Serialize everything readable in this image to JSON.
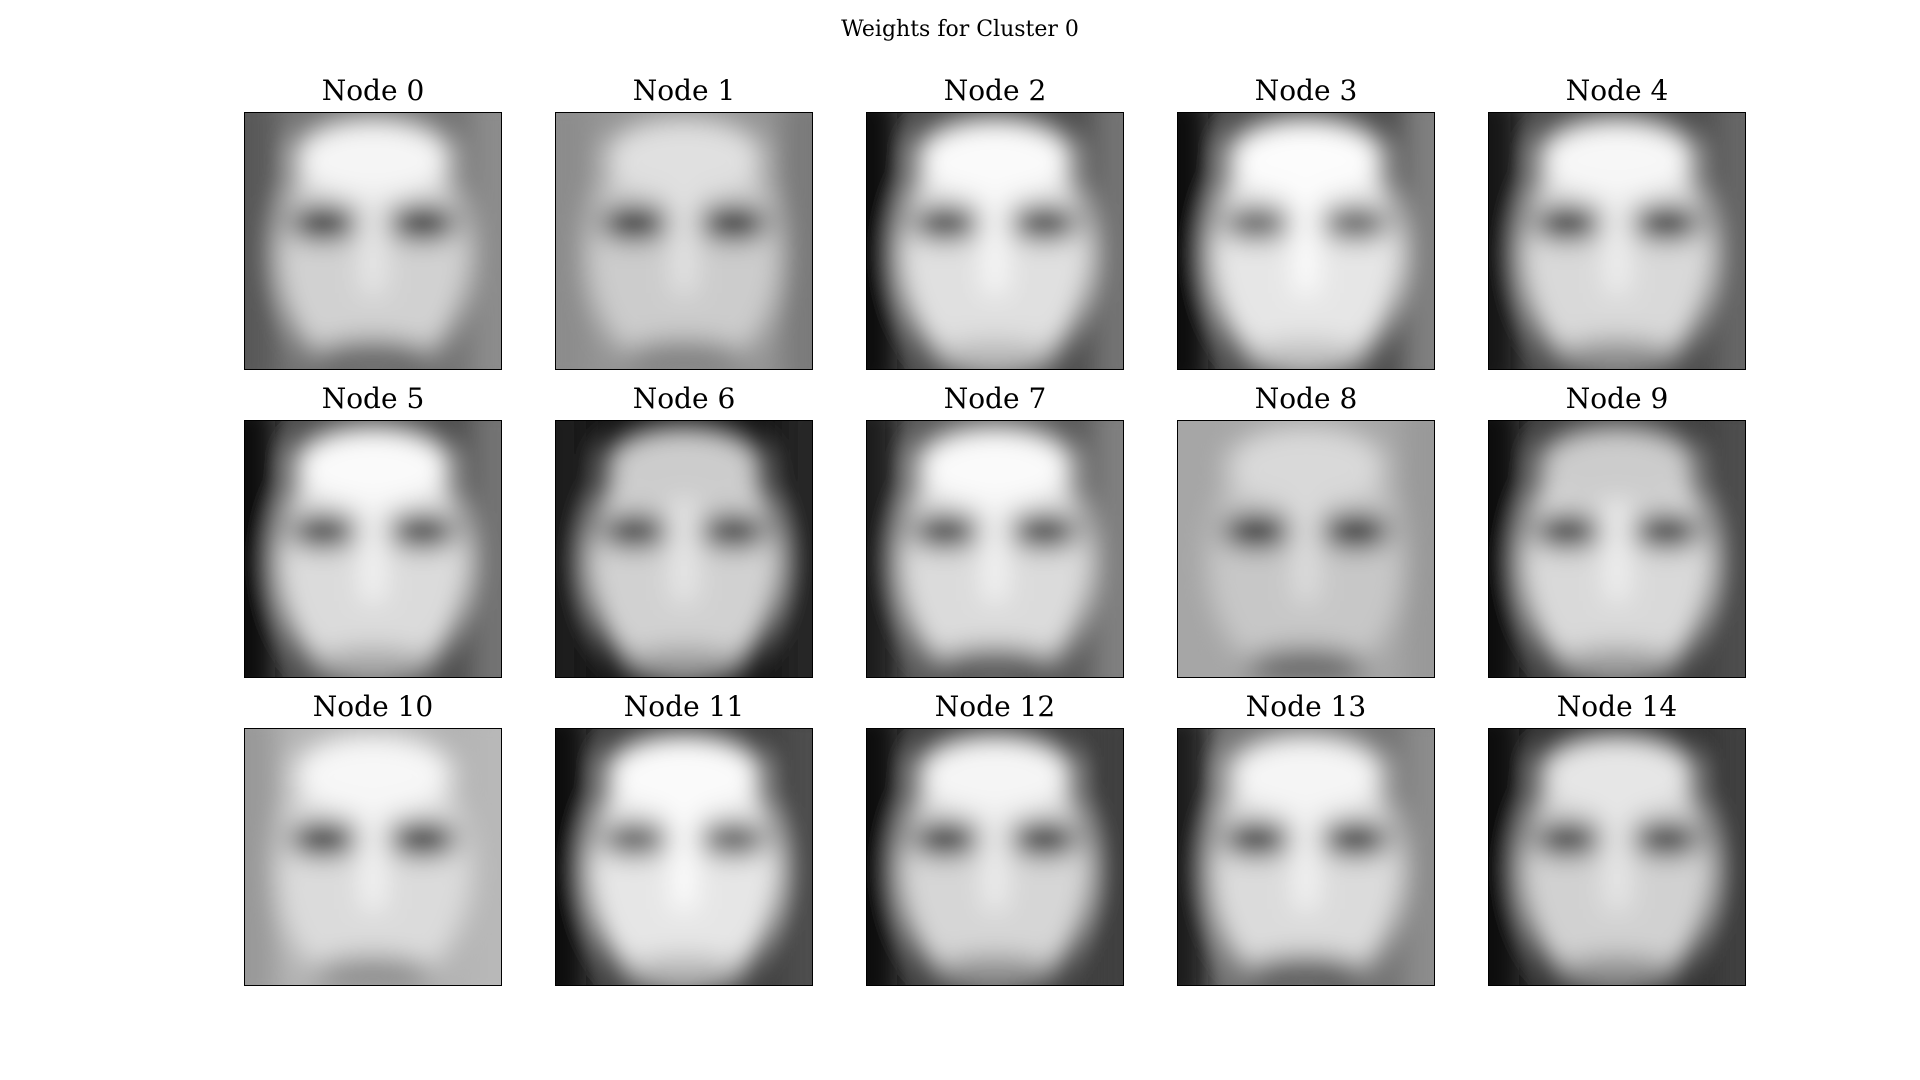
{
  "title": "Weights for Cluster 0",
  "nodes": [
    {
      "label": "Node 0",
      "tone": {
        "bg": 0.45,
        "forehead": 0.96,
        "skin": 0.82,
        "eyes": 0.08,
        "mouth": 0.4,
        "left": 0.35,
        "right": 0.55
      }
    },
    {
      "label": "Node 1",
      "tone": {
        "bg": 0.58,
        "forehead": 0.88,
        "skin": 0.8,
        "eyes": 0.05,
        "mouth": 0.5,
        "left": 0.55,
        "right": 0.48
      }
    },
    {
      "label": "Node 2",
      "tone": {
        "bg": 0.3,
        "forehead": 0.98,
        "skin": 0.88,
        "eyes": 0.2,
        "mouth": 0.72,
        "left": 0.06,
        "right": 0.45
      }
    },
    {
      "label": "Node 3",
      "tone": {
        "bg": 0.3,
        "forehead": 0.99,
        "skin": 0.9,
        "eyes": 0.35,
        "mouth": 0.75,
        "left": 0.05,
        "right": 0.5
      }
    },
    {
      "label": "Node 4",
      "tone": {
        "bg": 0.3,
        "forehead": 0.97,
        "skin": 0.85,
        "eyes": 0.12,
        "mouth": 0.55,
        "left": 0.08,
        "right": 0.4
      }
    },
    {
      "label": "Node 5",
      "tone": {
        "bg": 0.3,
        "forehead": 0.98,
        "skin": 0.86,
        "eyes": 0.2,
        "mouth": 0.65,
        "left": 0.05,
        "right": 0.45
      }
    },
    {
      "label": "Node 6",
      "tone": {
        "bg": 0.08,
        "forehead": 0.8,
        "skin": 0.82,
        "eyes": 0.18,
        "mouth": 0.6,
        "left": 0.1,
        "right": 0.15
      }
    },
    {
      "label": "Node 7",
      "tone": {
        "bg": 0.35,
        "forehead": 0.98,
        "skin": 0.86,
        "eyes": 0.18,
        "mouth": 0.35,
        "left": 0.1,
        "right": 0.5
      }
    },
    {
      "label": "Node 8",
      "tone": {
        "bg": 0.65,
        "forehead": 0.85,
        "skin": 0.78,
        "eyes": 0.05,
        "mouth": 0.4,
        "left": 0.65,
        "right": 0.6
      }
    },
    {
      "label": "Node 9",
      "tone": {
        "bg": 0.25,
        "forehead": 0.8,
        "skin": 0.85,
        "eyes": 0.15,
        "mouth": 0.6,
        "left": 0.04,
        "right": 0.3
      }
    },
    {
      "label": "Node 10",
      "tone": {
        "bg": 0.7,
        "forehead": 0.97,
        "skin": 0.86,
        "eyes": 0.08,
        "mouth": 0.55,
        "left": 0.6,
        "right": 0.72
      }
    },
    {
      "label": "Node 11",
      "tone": {
        "bg": 0.25,
        "forehead": 0.98,
        "skin": 0.9,
        "eyes": 0.32,
        "mouth": 0.7,
        "left": 0.06,
        "right": 0.3
      }
    },
    {
      "label": "Node 12",
      "tone": {
        "bg": 0.25,
        "forehead": 0.96,
        "skin": 0.84,
        "eyes": 0.12,
        "mouth": 0.55,
        "left": 0.05,
        "right": 0.25
      }
    },
    {
      "label": "Node 13",
      "tone": {
        "bg": 0.45,
        "forehead": 0.96,
        "skin": 0.86,
        "eyes": 0.12,
        "mouth": 0.35,
        "left": 0.1,
        "right": 0.55
      }
    },
    {
      "label": "Node 14",
      "tone": {
        "bg": 0.2,
        "forehead": 0.9,
        "skin": 0.82,
        "eyes": 0.18,
        "mouth": 0.55,
        "left": 0.04,
        "right": 0.25
      }
    }
  ]
}
